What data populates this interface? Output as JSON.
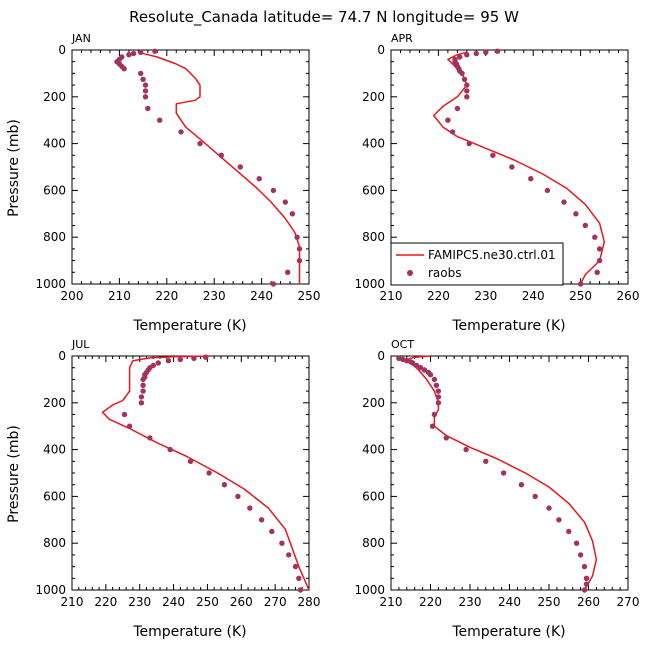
{
  "figure": {
    "title": "Resolute_Canada   latitude= 74.7 N longitude= 95 W"
  },
  "colors": {
    "model": "#e8171c",
    "obs": "#a3325f",
    "axis": "#000000"
  },
  "legend": {
    "location": "lower-right of APR panel",
    "model_label": "FAMIPC5.ne30.ctrl.01",
    "obs_label": "raobs"
  },
  "chart_data": [
    {
      "type": "line+scatter",
      "panel": "JAN",
      "xlabel": "Temperature (K)",
      "ylabel": "Pressure (mb)",
      "xlim": [
        200,
        250
      ],
      "xticks": [
        200,
        210,
        220,
        230,
        240,
        250
      ],
      "ylim": [
        1000,
        0
      ],
      "yticks": [
        0,
        200,
        400,
        600,
        800,
        1000
      ],
      "model": {
        "name": "FAMIPC5.ne30.ctrl.01",
        "x": [
          214,
          216,
          218,
          220,
          222,
          224,
          226,
          227,
          227,
          226,
          222,
          222,
          224,
          227,
          231,
          235,
          239,
          242,
          245,
          247,
          248,
          248,
          248
        ],
        "y": [
          10,
          20,
          30,
          45,
          60,
          80,
          120,
          150,
          200,
          215,
          230,
          270,
          330,
          380,
          450,
          520,
          590,
          650,
          720,
          780,
          840,
          900,
          1000
        ]
      },
      "obs": {
        "name": "raobs",
        "x": [
          217.5,
          214.5,
          213.0,
          212.0,
          210.5,
          210.0,
          209.5,
          210.0,
          210.5,
          211.0,
          214.5,
          215.0,
          215.5,
          215.5,
          215.5,
          216.0,
          218.5,
          223.0,
          227.0,
          231.5,
          235.5,
          239.5,
          242.5,
          245.0,
          246.5,
          247.5,
          248.0,
          248.0,
          245.5,
          242.5
        ],
        "y": [
          5,
          10,
          15,
          20,
          30,
          40,
          50,
          60,
          70,
          80,
          100,
          125,
          150,
          175,
          200,
          250,
          300,
          350,
          400,
          450,
          500,
          550,
          600,
          650,
          700,
          800,
          850,
          900,
          950,
          1000
        ]
      }
    },
    {
      "type": "line+scatter",
      "panel": "APR",
      "xlabel": "Temperature (K)",
      "ylabel": "",
      "xlim": [
        210,
        260
      ],
      "xticks": [
        210,
        220,
        230,
        240,
        250,
        260
      ],
      "ylim": [
        1000,
        0
      ],
      "yticks": [
        0,
        200,
        400,
        600,
        800,
        1000
      ],
      "model": {
        "name": "FAMIPC5.ne30.ctrl.01",
        "x": [
          226,
          224,
          223,
          222,
          223,
          225,
          226,
          224,
          221,
          219,
          221,
          224,
          230,
          236,
          242,
          247,
          251,
          254,
          255,
          254,
          251,
          250
        ],
        "y": [
          10,
          20,
          30,
          40,
          60,
          100,
          150,
          200,
          240,
          280,
          330,
          370,
          420,
          470,
          530,
          590,
          660,
          740,
          820,
          900,
          960,
          1000
        ]
      },
      "obs": {
        "name": "raobs",
        "x": [
          232.5,
          230.0,
          228.0,
          226.0,
          224.5,
          223.5,
          223.5,
          223.8,
          224.0,
          224.3,
          224.5,
          225.0,
          225.5,
          226.0,
          226.0,
          226.0,
          224.0,
          222.0,
          223.0,
          226.5,
          231.5,
          235.5,
          239.5,
          243.0,
          246.5,
          249.0,
          251.0,
          253.0,
          254.0,
          254.0,
          253.5,
          250.0
        ],
        "y": [
          5,
          10,
          15,
          20,
          30,
          40,
          50,
          60,
          70,
          80,
          90,
          100,
          125,
          150,
          175,
          200,
          250,
          300,
          350,
          400,
          450,
          500,
          550,
          600,
          650,
          700,
          750,
          800,
          850,
          900,
          950,
          1000
        ]
      }
    },
    {
      "type": "line+scatter",
      "panel": "JUL",
      "xlabel": "Temperature (K)",
      "ylabel": "Pressure (mb)",
      "xlim": [
        210,
        280
      ],
      "xticks": [
        210,
        220,
        230,
        240,
        250,
        260,
        270,
        280
      ],
      "ylim": [
        1000,
        0
      ],
      "yticks": [
        0,
        200,
        400,
        600,
        800,
        1000
      ],
      "model": {
        "name": "FAMIPC5.ne30.ctrl.01",
        "x": [
          251,
          240,
          233,
          228,
          227,
          227,
          227,
          225,
          222,
          219,
          221,
          227,
          235,
          244,
          253,
          261,
          268,
          273,
          275,
          277,
          280
        ],
        "y": [
          0,
          3,
          8,
          20,
          50,
          100,
          150,
          190,
          210,
          240,
          270,
          310,
          370,
          430,
          500,
          570,
          650,
          740,
          820,
          900,
          1000
        ]
      },
      "obs": {
        "name": "raobs",
        "x": [
          249.5,
          246.0,
          242.0,
          238.5,
          235.5,
          234.0,
          233.0,
          232.5,
          232.0,
          231.5,
          231.5,
          231.0,
          231.0,
          231.0,
          230.5,
          230.5,
          225.5,
          227.0,
          233.0,
          239.0,
          245.0,
          250.5,
          255.0,
          259.0,
          262.5,
          266.0,
          269.0,
          272.0,
          274.0,
          276.0,
          277.0,
          277.5
        ],
        "y": [
          5,
          10,
          15,
          20,
          30,
          40,
          50,
          60,
          70,
          80,
          90,
          100,
          125,
          150,
          175,
          200,
          250,
          300,
          350,
          400,
          450,
          500,
          550,
          600,
          650,
          700,
          750,
          800,
          850,
          900,
          950,
          1000
        ]
      }
    },
    {
      "type": "line+scatter",
      "panel": "OCT",
      "xlabel": "Temperature (K)",
      "ylabel": "",
      "xlim": [
        210,
        270
      ],
      "xticks": [
        210,
        220,
        230,
        240,
        250,
        260,
        270
      ],
      "ylim": [
        1000,
        0
      ],
      "yticks": [
        0,
        200,
        400,
        600,
        800,
        1000
      ],
      "model": {
        "name": "FAMIPC5.ne30.ctrl.01",
        "x": [
          220,
          216,
          214,
          215,
          217,
          219,
          221,
          222,
          222,
          221,
          221,
          224,
          230,
          237,
          244,
          250,
          255,
          259,
          261,
          262,
          261,
          259
        ],
        "y": [
          0,
          5,
          15,
          30,
          60,
          100,
          150,
          200,
          230,
          260,
          300,
          340,
          390,
          440,
          500,
          560,
          630,
          710,
          790,
          870,
          940,
          1000
        ]
      },
      "obs": {
        "name": "raobs",
        "x": [
          212.0,
          213.0,
          214.0,
          215.0,
          215.5,
          216.5,
          217.5,
          218.5,
          219.5,
          220.0,
          221.0,
          221.5,
          222.0,
          222.0,
          222.0,
          221.0,
          220.5,
          224.0,
          229.0,
          234.0,
          238.5,
          243.0,
          246.5,
          250.0,
          252.5,
          255.0,
          257.0,
          258.0,
          259.0,
          259.5,
          259.5,
          259.0
        ],
        "y": [
          10,
          15,
          20,
          25,
          30,
          40,
          50,
          60,
          70,
          80,
          100,
          125,
          150,
          175,
          200,
          250,
          300,
          350,
          400,
          450,
          500,
          550,
          600,
          650,
          700,
          750,
          800,
          850,
          900,
          950,
          975,
          1000
        ]
      }
    }
  ]
}
